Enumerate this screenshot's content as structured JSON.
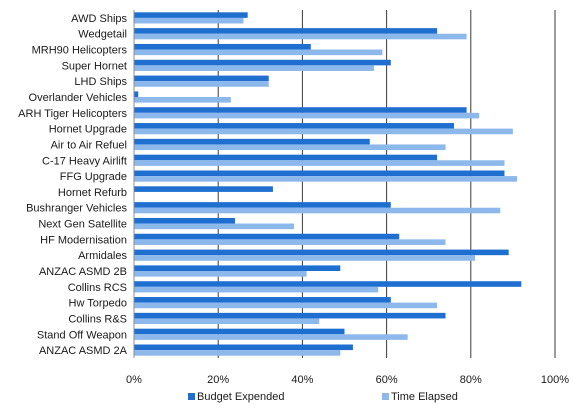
{
  "chart_data": {
    "type": "bar",
    "orientation": "horizontal",
    "categories": [
      "AWD Ships",
      "Wedgetail",
      "MRH90 Helicopters",
      "Super Hornet",
      "LHD Ships",
      "Overlander Vehicles",
      "ARH Tiger Helicopters",
      "Hornet Upgrade",
      "Air to Air Refuel",
      "C-17 Heavy Airlift",
      "FFG Upgrade",
      "Hornet Refurb",
      "Bushranger Vehicles",
      "Next Gen Satellite",
      "HF Modernisation",
      "Armidales",
      "ANZAC ASMD 2B",
      "Collins RCS",
      "Hw Torpedo",
      "Collins R&S",
      "Stand Off  Weapon",
      "ANZAC ASMD 2A"
    ],
    "series": [
      {
        "name": "Budget Expended",
        "color": "#1f6fd1",
        "values": [
          27,
          72,
          42,
          61,
          32,
          1,
          79,
          76,
          56,
          72,
          88,
          33,
          61,
          24,
          63,
          89,
          49,
          92,
          61,
          74,
          50,
          52
        ]
      },
      {
        "name": "Time Elapsed",
        "color": "#8db8ec",
        "values": [
          26,
          79,
          59,
          57,
          32,
          23,
          82,
          90,
          74,
          88,
          91,
          0,
          87,
          38,
          74,
          81,
          41,
          58,
          72,
          44,
          65,
          49
        ]
      }
    ],
    "xlim": [
      0,
      100
    ],
    "xticks": [
      "0%",
      "20%",
      "40%",
      "60%",
      "80%",
      "100%"
    ],
    "grid": "vertical",
    "legend": "bottom"
  }
}
